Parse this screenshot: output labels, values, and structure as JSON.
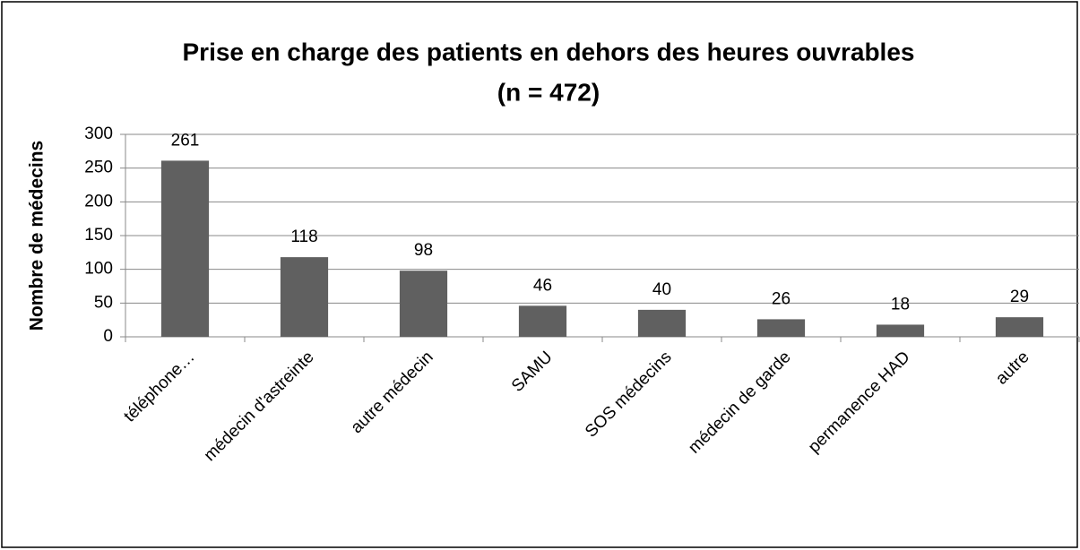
{
  "chart_data": {
    "type": "bar",
    "title": "Prise en charge des patients en dehors des heures ouvrables",
    "subtitle": "(n = 472)",
    "y_label": "Nombre de médecins",
    "categories": [
      "téléphone…",
      "médecin d'astreinte",
      "autre médecin",
      "SAMU",
      "SOS médecins",
      "médecin de garde",
      "permanence HAD",
      "autre"
    ],
    "values": [
      261,
      118,
      98,
      46,
      40,
      26,
      18,
      29
    ],
    "color": "#606060",
    "ylim": [
      0,
      300
    ],
    "yticks": [
      0,
      50,
      100,
      150,
      200,
      250,
      300
    ],
    "grid": true
  }
}
